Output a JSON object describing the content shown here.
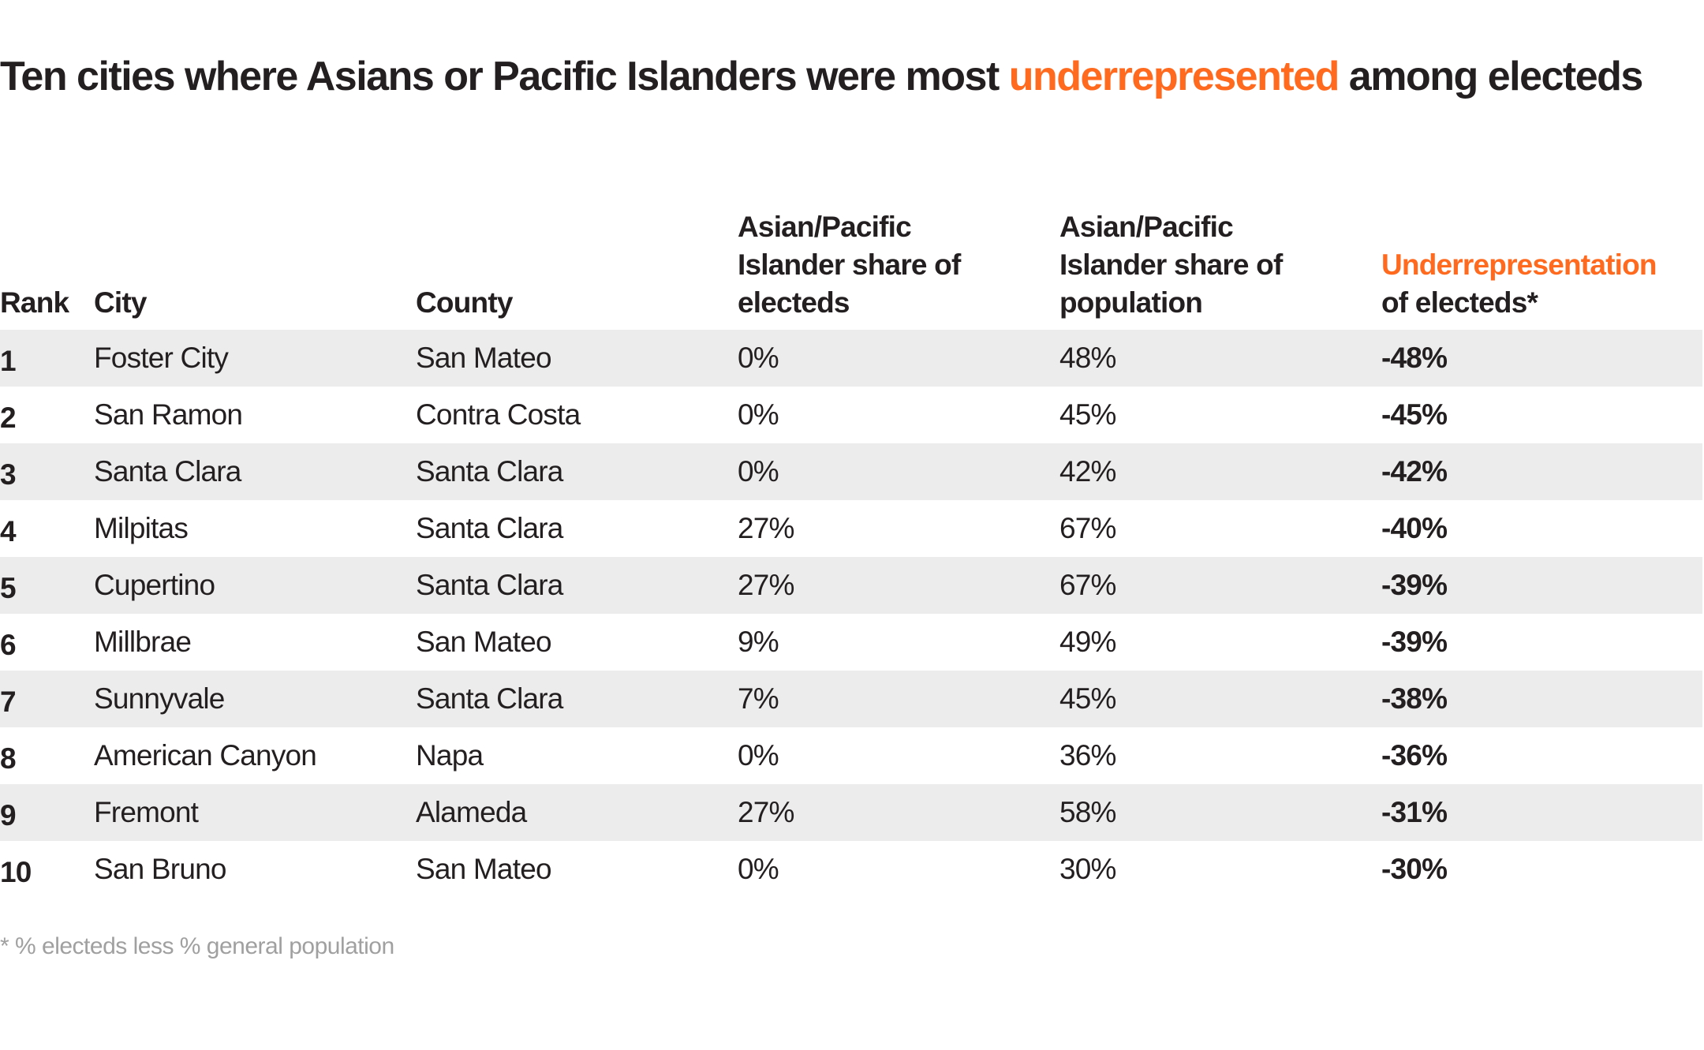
{
  "title": {
    "prefix": "Ten cities where Asians or Pacific Islanders were most ",
    "highlight": "underrepresented",
    "suffix": " among electeds"
  },
  "colors": {
    "accent": "#ff6a1f",
    "text": "#231f20",
    "stripe": "#ebeceb",
    "footnote": "#a0a0a0"
  },
  "table": {
    "headers": {
      "rank": "Rank",
      "city": "City",
      "county": "County",
      "elected_share": "Asian/Pacific Islander share of electeds",
      "population_share": "Asian/Pacific Islander share of population",
      "under_highlight": "Underrepresentation",
      "under_rest": "of electeds*"
    },
    "rows": [
      {
        "rank": "1",
        "city": "Foster City",
        "county": "San Mateo",
        "elected": "0%",
        "population": "48%",
        "under": "-48%"
      },
      {
        "rank": "2",
        "city": "San Ramon",
        "county": "Contra Costa",
        "elected": "0%",
        "population": "45%",
        "under": "-45%"
      },
      {
        "rank": "3",
        "city": "Santa Clara",
        "county": "Santa Clara",
        "elected": "0%",
        "population": "42%",
        "under": "-42%"
      },
      {
        "rank": "4",
        "city": "Milpitas",
        "county": "Santa Clara",
        "elected": "27%",
        "population": "67%",
        "under": "-40%"
      },
      {
        "rank": "5",
        "city": "Cupertino",
        "county": "Santa Clara",
        "elected": "27%",
        "population": "67%",
        "under": "-39%"
      },
      {
        "rank": "6",
        "city": "Millbrae",
        "county": "San Mateo",
        "elected": "9%",
        "population": "49%",
        "under": "-39%"
      },
      {
        "rank": "7",
        "city": "Sunnyvale",
        "county": "Santa Clara",
        "elected": "7%",
        "population": "45%",
        "under": "-38%"
      },
      {
        "rank": "8",
        "city": "American Canyon",
        "county": "Napa",
        "elected": "0%",
        "population": "36%",
        "under": "-36%"
      },
      {
        "rank": "9",
        "city": "Fremont",
        "county": "Alameda",
        "elected": "27%",
        "population": "58%",
        "under": "-31%"
      },
      {
        "rank": "10",
        "city": "San Bruno",
        "county": "San Mateo",
        "elected": "0%",
        "population": "30%",
        "under": "-30%"
      }
    ]
  },
  "footnote": "* % electeds less % general population"
}
